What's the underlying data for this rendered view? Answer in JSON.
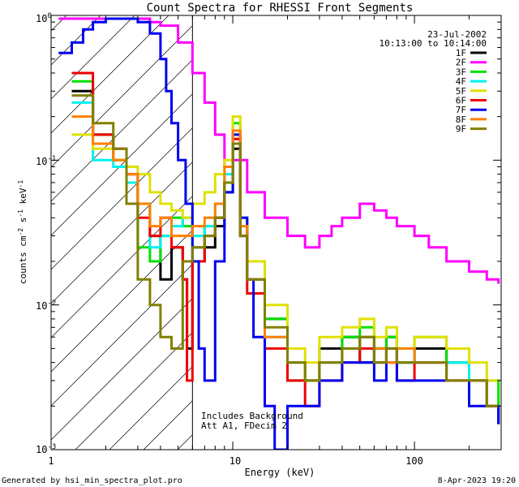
{
  "chart_data": {
    "type": "line",
    "title": "Count Spectra for RHESSI Front Segments",
    "xlabel": "Energy (keV)",
    "ylabel_parts": {
      "base": "counts cm",
      "exp1": "-2",
      "mid": " s",
      "exp2": "-1",
      "end": " keV",
      "exp3": "-1"
    },
    "xscale": "log",
    "yscale": "log",
    "xlim": [
      1,
      300
    ],
    "ylim": [
      0.001,
      1
    ],
    "x_ticks": [
      {
        "value": 1,
        "label": "1"
      },
      {
        "value": 10,
        "label": "10"
      },
      {
        "value": 100,
        "label": "100"
      }
    ],
    "y_ticks": [
      {
        "value": 0.001,
        "base": "10",
        "exp": "-3"
      },
      {
        "value": 0.01,
        "base": "10",
        "exp": "-2"
      },
      {
        "value": 0.1,
        "base": "10",
        "exp": "-1"
      },
      {
        "value": 1,
        "base": "10",
        "exp": "0"
      }
    ],
    "date": "23-Jul-2002",
    "time_range": "10:13:00 to 10:14:00",
    "attenuator_cutoff_keV": 6,
    "annotation_lines": [
      "Includes Background",
      "Att A1, FDecim 2"
    ],
    "series": [
      {
        "name": "1F",
        "color": "#000000",
        "x": [
          1.3,
          1.7,
          2.2,
          2.6,
          3.0,
          3.5,
          4.0,
          4.6,
          5.3,
          5.6,
          6.0,
          7,
          8,
          9,
          10,
          11,
          12,
          15,
          20,
          25,
          30,
          40,
          50,
          60,
          70,
          80,
          100,
          150,
          200,
          250,
          290
        ],
        "y": [
          0.3,
          0.15,
          0.1,
          0.07,
          0.05,
          0.03,
          0.015,
          0.025,
          0.015,
          0.005,
          0.02,
          0.025,
          0.035,
          0.06,
          0.12,
          0.03,
          0.015,
          0.008,
          0.003,
          0.003,
          0.005,
          0.006,
          0.004,
          0.005,
          0.006,
          0.004,
          0.005,
          0.004,
          0.003,
          0.002,
          0.0015
        ]
      },
      {
        "name": "2F",
        "color": "#ff00ff",
        "x": [
          1.1,
          1.5,
          2.0,
          2.5,
          3.0,
          3.5,
          4.0,
          5.0,
          6.0,
          7.0,
          8.0,
          9.0,
          10,
          12,
          15,
          20,
          25,
          30,
          35,
          40,
          50,
          60,
          70,
          80,
          100,
          120,
          150,
          200,
          250,
          290
        ],
        "y": [
          0.95,
          0.95,
          0.95,
          0.95,
          0.95,
          0.9,
          0.85,
          0.65,
          0.4,
          0.25,
          0.15,
          0.09,
          0.1,
          0.06,
          0.04,
          0.03,
          0.025,
          0.03,
          0.035,
          0.04,
          0.05,
          0.045,
          0.04,
          0.035,
          0.03,
          0.025,
          0.02,
          0.017,
          0.015,
          0.014
        ]
      },
      {
        "name": "3F",
        "color": "#00e000",
        "x": [
          1.3,
          1.7,
          2.2,
          2.6,
          3.0,
          3.5,
          4.0,
          4.6,
          5.3,
          6.0,
          7,
          8,
          9,
          10,
          11,
          12,
          15,
          20,
          25,
          30,
          40,
          50,
          60,
          70,
          80,
          100,
          150,
          200,
          250,
          290
        ],
        "y": [
          0.35,
          0.15,
          0.1,
          0.08,
          0.025,
          0.02,
          0.03,
          0.04,
          0.035,
          0.025,
          0.035,
          0.04,
          0.07,
          0.18,
          0.04,
          0.02,
          0.008,
          0.004,
          0.003,
          0.004,
          0.006,
          0.007,
          0.005,
          0.006,
          0.004,
          0.006,
          0.004,
          0.003,
          0.003,
          0.002
        ]
      },
      {
        "name": "4F",
        "color": "#00f0f0",
        "x": [
          1.3,
          1.7,
          2.2,
          2.6,
          3.0,
          3.5,
          4.0,
          4.6,
          5.3,
          6.0,
          7,
          8,
          9,
          10,
          11,
          12,
          15,
          20,
          25,
          30,
          40,
          50,
          60,
          70,
          80,
          100,
          150,
          200,
          250,
          290
        ],
        "y": [
          0.25,
          0.1,
          0.09,
          0.07,
          0.05,
          0.025,
          0.03,
          0.035,
          0.04,
          0.03,
          0.035,
          0.05,
          0.08,
          0.15,
          0.035,
          0.015,
          0.006,
          0.003,
          0.003,
          0.004,
          0.005,
          0.006,
          0.004,
          0.005,
          0.005,
          0.004,
          0.004,
          0.003,
          0.002,
          0.002
        ]
      },
      {
        "name": "5F",
        "color": "#e0e000",
        "x": [
          1.3,
          1.7,
          2.2,
          2.6,
          3.0,
          3.5,
          4.0,
          4.6,
          5.3,
          6.0,
          7,
          8,
          9,
          10,
          11,
          12,
          15,
          20,
          25,
          30,
          40,
          50,
          60,
          70,
          80,
          100,
          150,
          200,
          250,
          290
        ],
        "y": [
          0.15,
          0.12,
          0.1,
          0.09,
          0.08,
          0.06,
          0.05,
          0.045,
          0.04,
          0.05,
          0.06,
          0.08,
          0.1,
          0.2,
          0.04,
          0.02,
          0.01,
          0.005,
          0.004,
          0.006,
          0.007,
          0.008,
          0.006,
          0.007,
          0.005,
          0.006,
          0.005,
          0.004,
          0.003,
          0.003
        ]
      },
      {
        "name": "6F",
        "color": "#f00000",
        "x": [
          1.3,
          1.7,
          2.2,
          2.6,
          3.0,
          3.5,
          4.0,
          4.6,
          5.3,
          5.6,
          6.0,
          7,
          8,
          9,
          10,
          11,
          12,
          15,
          20,
          25,
          30,
          40,
          50,
          60,
          70,
          80,
          100,
          150,
          200,
          250,
          290
        ],
        "y": [
          0.4,
          0.15,
          0.12,
          0.08,
          0.04,
          0.03,
          0.04,
          0.025,
          0.015,
          0.003,
          0.02,
          0.03,
          0.04,
          0.07,
          0.14,
          0.03,
          0.012,
          0.005,
          0.003,
          0.002,
          0.003,
          0.004,
          0.005,
          0.004,
          0.005,
          0.003,
          0.004,
          0.003,
          0.003,
          0.002,
          0.002
        ]
      },
      {
        "name": "7F",
        "color": "#0000f0",
        "x": [
          1.1,
          1.3,
          1.5,
          1.7,
          2.0,
          2.5,
          3.0,
          3.5,
          4.0,
          4.3,
          4.6,
          5.0,
          5.5,
          6.0,
          6.5,
          7.0,
          8,
          9,
          10,
          11,
          12,
          13,
          15,
          17,
          20,
          25,
          30,
          40,
          50,
          60,
          70,
          80,
          100,
          150,
          200,
          250,
          290
        ],
        "y": [
          0.55,
          0.65,
          0.8,
          0.9,
          0.95,
          0.95,
          0.9,
          0.75,
          0.5,
          0.3,
          0.18,
          0.1,
          0.05,
          0.02,
          0.005,
          0.003,
          0.02,
          0.06,
          0.15,
          0.04,
          0.015,
          0.006,
          0.002,
          0.001,
          0.002,
          0.002,
          0.003,
          0.004,
          0.004,
          0.003,
          0.004,
          0.003,
          0.003,
          0.003,
          0.002,
          0.002,
          0.0015
        ]
      },
      {
        "name": "8F",
        "color": "#ff8000",
        "x": [
          1.3,
          1.7,
          2.2,
          2.6,
          3.0,
          3.5,
          4.0,
          4.6,
          5.3,
          6.0,
          7,
          8,
          9,
          10,
          11,
          12,
          15,
          20,
          25,
          30,
          40,
          50,
          60,
          70,
          80,
          100,
          150,
          200,
          250,
          290
        ],
        "y": [
          0.2,
          0.13,
          0.1,
          0.08,
          0.05,
          0.035,
          0.04,
          0.03,
          0.03,
          0.035,
          0.04,
          0.05,
          0.09,
          0.16,
          0.035,
          0.015,
          0.006,
          0.004,
          0.003,
          0.004,
          0.005,
          0.006,
          0.005,
          0.004,
          0.005,
          0.004,
          0.003,
          0.003,
          0.002,
          0.002
        ]
      },
      {
        "name": "9F",
        "color": "#808000",
        "x": [
          1.3,
          1.7,
          2.2,
          2.6,
          3.0,
          3.5,
          4.0,
          4.6,
          5.3,
          6.0,
          7,
          8,
          9,
          10,
          11,
          12,
          15,
          20,
          25,
          30,
          40,
          50,
          60,
          70,
          80,
          100,
          150,
          200,
          250,
          290
        ],
        "y": [
          0.28,
          0.18,
          0.12,
          0.05,
          0.015,
          0.01,
          0.006,
          0.005,
          0.02,
          0.025,
          0.03,
          0.04,
          0.07,
          0.13,
          0.03,
          0.015,
          0.007,
          0.004,
          0.003,
          0.004,
          0.005,
          0.006,
          0.004,
          0.005,
          0.004,
          0.004,
          0.003,
          0.003,
          0.002,
          0.002
        ]
      }
    ]
  },
  "footer": {
    "generated_by": "Generated by hsi_min_spectra_plot.pro",
    "timestamp": "8-Apr-2023 19:20"
  }
}
